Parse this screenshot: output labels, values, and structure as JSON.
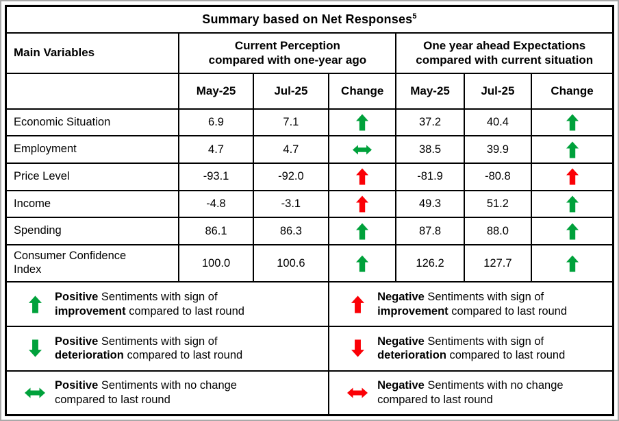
{
  "title": {
    "text": "Summary based on Net Responses",
    "superscript": "5"
  },
  "colors": {
    "green": "#00A13B",
    "red": "#FB0006",
    "border": "#000000",
    "page_frame": "#a9a9a9"
  },
  "table": {
    "main_variables_header": "Main Variables",
    "groups": [
      {
        "lines": [
          "Current Perception",
          "compared with one-year ago"
        ]
      },
      {
        "lines": [
          "One year ahead Expectations",
          "compared with current situation"
        ]
      }
    ],
    "period_headers": [
      "May-25",
      "Jul-25",
      "Change"
    ],
    "rows": [
      {
        "label": "Economic Situation",
        "current": {
          "may": "6.9",
          "jul": "7.1",
          "change": {
            "arrow": "up",
            "color": "green"
          }
        },
        "expectations": {
          "may": "37.2",
          "jul": "40.4",
          "change": {
            "arrow": "up",
            "color": "green"
          }
        }
      },
      {
        "label": "Employment",
        "current": {
          "may": "4.7",
          "jul": "4.7",
          "change": {
            "arrow": "lr",
            "color": "green"
          }
        },
        "expectations": {
          "may": "38.5",
          "jul": "39.9",
          "change": {
            "arrow": "up",
            "color": "green"
          }
        }
      },
      {
        "label": "Price Level",
        "current": {
          "may": "-93.1",
          "jul": "-92.0",
          "change": {
            "arrow": "up",
            "color": "red"
          }
        },
        "expectations": {
          "may": "-81.9",
          "jul": "-80.8",
          "change": {
            "arrow": "up",
            "color": "red"
          }
        }
      },
      {
        "label": "Income",
        "current": {
          "may": "-4.8",
          "jul": "-3.1",
          "change": {
            "arrow": "up",
            "color": "red"
          }
        },
        "expectations": {
          "may": "49.3",
          "jul": "51.2",
          "change": {
            "arrow": "up",
            "color": "green"
          }
        }
      },
      {
        "label": "Spending",
        "current": {
          "may": "86.1",
          "jul": "86.3",
          "change": {
            "arrow": "up",
            "color": "green"
          }
        },
        "expectations": {
          "may": "87.8",
          "jul": "88.0",
          "change": {
            "arrow": "up",
            "color": "green"
          }
        }
      },
      {
        "label": "Consumer Confidence\nIndex",
        "tall": true,
        "current": {
          "may": "100.0",
          "jul": "100.6",
          "change": {
            "arrow": "up",
            "color": "green"
          }
        },
        "expectations": {
          "may": "126.2",
          "jul": "127.7",
          "change": {
            "arrow": "up",
            "color": "green"
          }
        }
      }
    ]
  },
  "legend": {
    "rows": [
      [
        {
          "arrow": "up",
          "color": "green",
          "parts": [
            [
              "Positive",
              true
            ],
            [
              " Sentiments with sign of ",
              false
            ],
            [
              "improvement",
              true
            ],
            [
              " compared to last round",
              false
            ]
          ]
        },
        {
          "arrow": "up",
          "color": "red",
          "parts": [
            [
              "Negative",
              true
            ],
            [
              " Sentiments with sign of ",
              false
            ],
            [
              "improvement",
              true
            ],
            [
              " compared to last round",
              false
            ]
          ]
        }
      ],
      [
        {
          "arrow": "down",
          "color": "green",
          "parts": [
            [
              "Positive",
              true
            ],
            [
              " Sentiments with sign of ",
              false
            ],
            [
              "deterioration",
              true
            ],
            [
              " compared to last round",
              false
            ]
          ]
        },
        {
          "arrow": "down",
          "color": "red",
          "parts": [
            [
              "Negative",
              true
            ],
            [
              " Sentiments with sign of ",
              false
            ],
            [
              "deterioration",
              true
            ],
            [
              " compared to last round",
              false
            ]
          ]
        }
      ],
      [
        {
          "arrow": "lr",
          "color": "green",
          "parts": [
            [
              "Positive",
              true
            ],
            [
              " Sentiments with no change compared to last round",
              false
            ]
          ]
        },
        {
          "arrow": "lr",
          "color": "red",
          "parts": [
            [
              "Negative",
              true
            ],
            [
              " Sentiments with no change compared to last round",
              false
            ]
          ]
        }
      ]
    ]
  }
}
